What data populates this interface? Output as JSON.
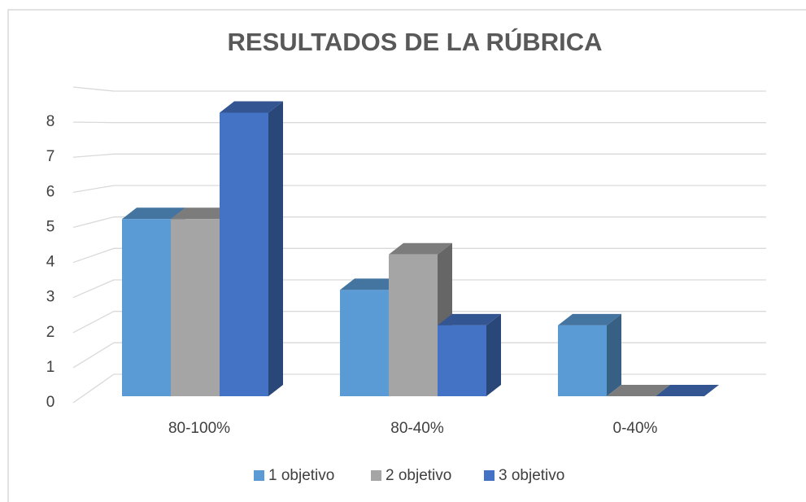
{
  "chart_data": {
    "type": "bar3d",
    "title": "RESULTADOS DE LA RÚBRICA",
    "categories": [
      "80-100%",
      "80-40%",
      "0-40%"
    ],
    "series": [
      {
        "name": "1 objetivo",
        "color": "#5b9bd5",
        "values": [
          5,
          3,
          2
        ]
      },
      {
        "name": "2 objetivo",
        "color": "#a5a5a5",
        "values": [
          5,
          4,
          0
        ]
      },
      {
        "name": "3 objetivo",
        "color": "#4472c4",
        "values": [
          8,
          2,
          0
        ]
      }
    ],
    "ylim": [
      0,
      9
    ],
    "yticks": [
      0,
      1,
      2,
      3,
      4,
      5,
      6,
      7,
      8
    ],
    "grid": true,
    "legend": "bottom"
  }
}
